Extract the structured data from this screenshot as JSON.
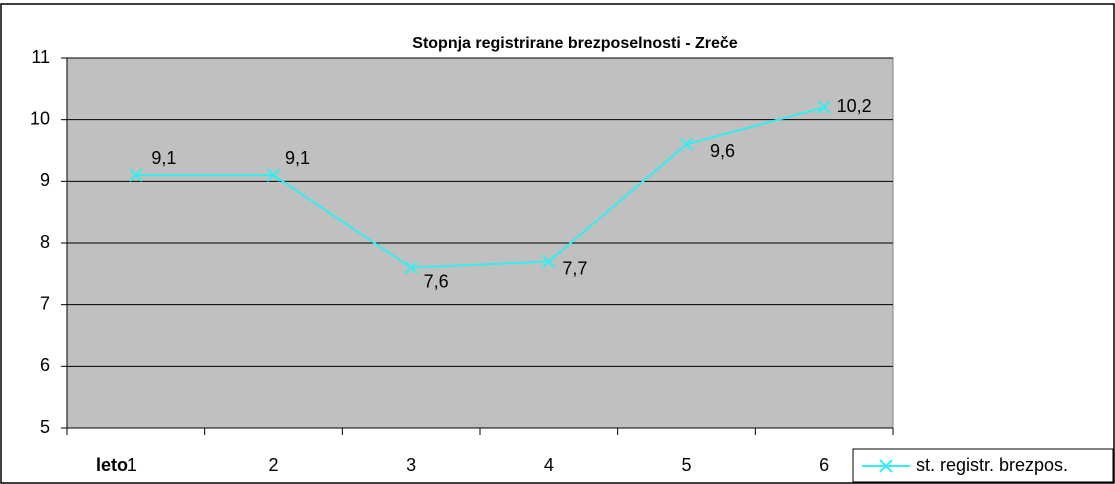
{
  "chart_data": {
    "type": "line",
    "title": "Stopnja registrirane brezposelnosti - Zreče",
    "x_label": "leto",
    "categories": [
      "1",
      "2",
      "3",
      "4",
      "5",
      "6"
    ],
    "series": [
      {
        "name": "st. registr. brezpos.",
        "color": "#33eeee",
        "values": [
          9.1,
          9.1,
          7.6,
          7.7,
          9.6,
          10.2
        ],
        "value_labels": [
          "9,1",
          "9,1",
          "7,6",
          "7,7",
          "9,6",
          "10,2"
        ]
      }
    ],
    "ylim": [
      5,
      11
    ],
    "yticks": [
      5,
      6,
      7,
      8,
      9,
      10,
      11
    ],
    "grid": true,
    "legend": "bottom-right"
  }
}
